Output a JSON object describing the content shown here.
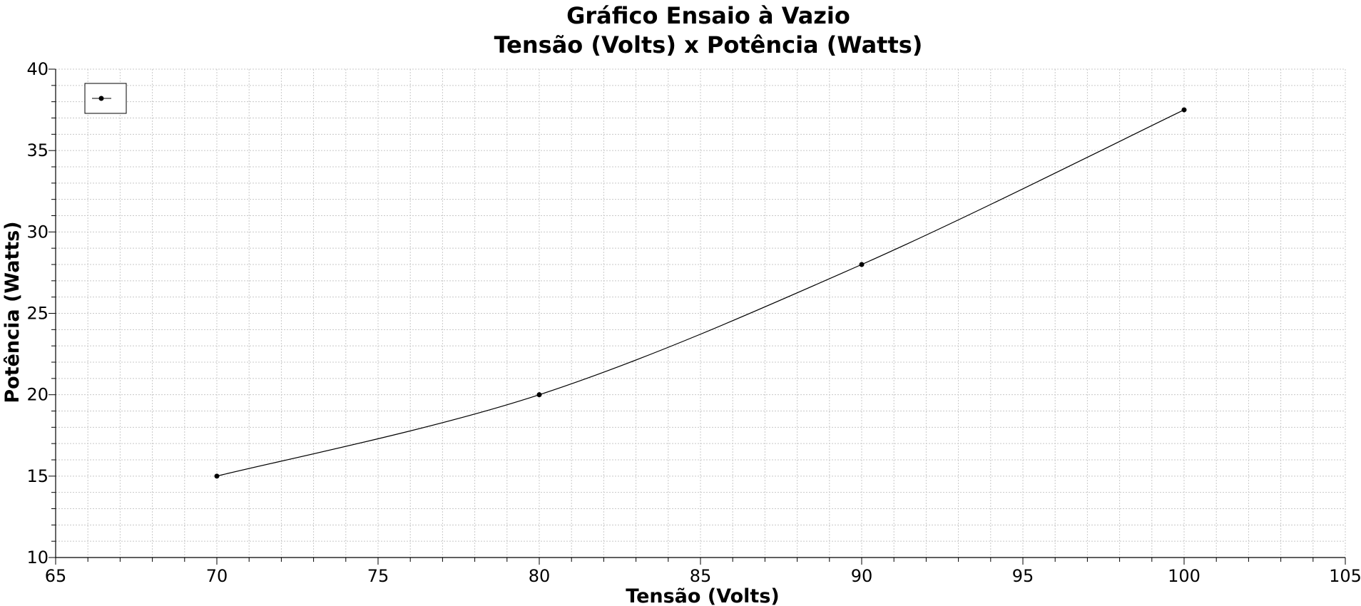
{
  "chart_data": {
    "type": "line",
    "title": "Gráfico Ensaio à Vazio",
    "subtitle": "Tensão (Volts) x Potência (Watts)",
    "xlabel": "Tensão (Volts)",
    "ylabel": "Potência (Watts)",
    "xlim": [
      65,
      105
    ],
    "ylim": [
      10,
      40
    ],
    "x_ticks": [
      65,
      70,
      75,
      80,
      85,
      90,
      95,
      100,
      105
    ],
    "y_ticks": [
      10,
      15,
      20,
      25,
      30,
      35,
      40
    ],
    "grid": true,
    "legend_position": "top-left",
    "series": [
      {
        "color": "#000000",
        "x": [
          70,
          80,
          90,
          100
        ],
        "y": [
          15,
          20,
          28,
          37.5
        ]
      }
    ]
  }
}
